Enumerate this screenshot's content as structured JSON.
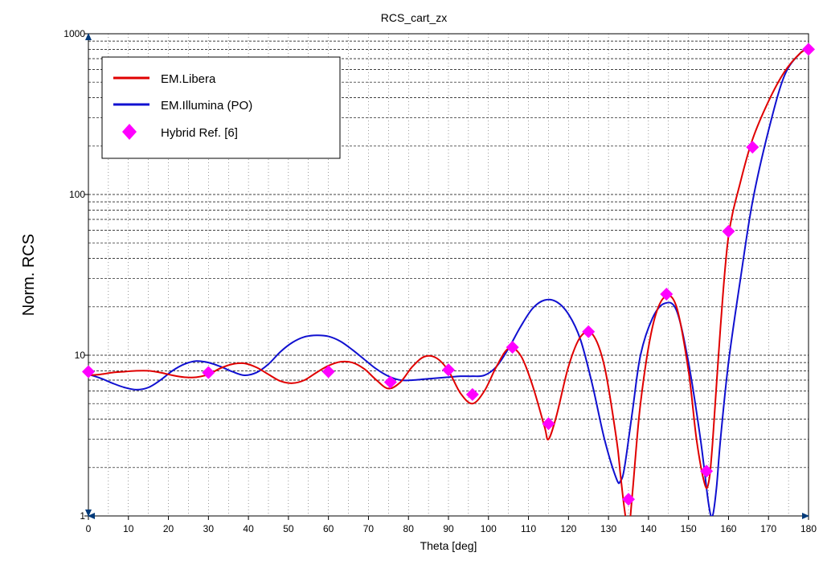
{
  "chart_data": {
    "type": "line",
    "title": "RCS_cart_zx",
    "xlabel": "Theta [deg]",
    "ylabel": "Norm. RCS",
    "xlim": [
      0,
      180
    ],
    "ylim": [
      1,
      1000
    ],
    "yscale": "log",
    "grid": true,
    "legend_position": "top-left",
    "x_ticks": [
      "0",
      "10",
      "20",
      "30",
      "40",
      "50",
      "60",
      "70",
      "80",
      "90",
      "100",
      "110",
      "120",
      "130",
      "140",
      "150",
      "160",
      "170",
      "180"
    ],
    "y_ticks": [
      "1",
      "10",
      "100",
      "1000"
    ],
    "series": [
      {
        "name": "EM.Libera",
        "style": "line",
        "color": "#e00000",
        "x": [
          0,
          3,
          6,
          9,
          12,
          15,
          18,
          21,
          24,
          27,
          30,
          33,
          36,
          39,
          42,
          45,
          48,
          51,
          54,
          57,
          60,
          63,
          66,
          69,
          72,
          75,
          78,
          81,
          84,
          87,
          90,
          93,
          96,
          99,
          102,
          105,
          108,
          111,
          114,
          115,
          117,
          120,
          123,
          126,
          129,
          132,
          133,
          134,
          135,
          136,
          138,
          141,
          144,
          147,
          150,
          152,
          154,
          155,
          156,
          158,
          160,
          163,
          166,
          170,
          174,
          178,
          180
        ],
        "y": [
          7.5,
          7.6,
          7.8,
          7.9,
          8.0,
          8.0,
          7.8,
          7.5,
          7.3,
          7.3,
          7.6,
          8.3,
          8.8,
          8.9,
          8.4,
          7.6,
          6.9,
          6.7,
          7.0,
          7.8,
          8.6,
          9.1,
          9.0,
          8.2,
          7.0,
          6.2,
          6.8,
          8.5,
          9.8,
          9.6,
          8.0,
          5.8,
          5.0,
          6.0,
          8.5,
          11.0,
          10.0,
          6.5,
          3.6,
          3.0,
          4.2,
          8.5,
          13.0,
          13.5,
          8.5,
          3.0,
          1.8,
          1.1,
          0.8,
          1.4,
          5.0,
          15.0,
          23.0,
          20.0,
          8.0,
          3.0,
          1.6,
          1.6,
          2.8,
          15.0,
          55.0,
          120.0,
          220.0,
          380.0,
          580.0,
          760.0,
          800.0
        ]
      },
      {
        "name": "EM.Illumina (PO)",
        "style": "line",
        "color": "#1010d0",
        "x": [
          0,
          3,
          6,
          9,
          12,
          15,
          18,
          21,
          24,
          27,
          30,
          33,
          36,
          39,
          42,
          45,
          48,
          51,
          54,
          57,
          60,
          63,
          66,
          69,
          72,
          75,
          78,
          81,
          84,
          87,
          90,
          93,
          96,
          99,
          102,
          105,
          108,
          111,
          114,
          117,
          120,
          123,
          126,
          129,
          132,
          133,
          134,
          136,
          138,
          141,
          144,
          147,
          150,
          153,
          155,
          156,
          157,
          158,
          160,
          163,
          166,
          170,
          174,
          178,
          180
        ],
        "y": [
          7.6,
          7.2,
          6.7,
          6.3,
          6.1,
          6.3,
          7.0,
          8.0,
          8.8,
          9.2,
          9.0,
          8.5,
          7.9,
          7.5,
          7.8,
          8.8,
          10.5,
          12.0,
          13.0,
          13.3,
          13.1,
          12.2,
          10.8,
          9.4,
          8.2,
          7.4,
          7.0,
          7.0,
          7.1,
          7.2,
          7.3,
          7.4,
          7.4,
          7.5,
          8.5,
          11.0,
          15.0,
          19.5,
          22.0,
          21.5,
          18.0,
          12.5,
          6.5,
          3.0,
          1.7,
          1.65,
          2.0,
          4.5,
          10.0,
          17.0,
          21.0,
          19.0,
          9.0,
          3.0,
          1.2,
          1.0,
          1.5,
          3.0,
          9.0,
          30.0,
          90.0,
          250.0,
          550.0,
          760.0,
          800.0
        ]
      },
      {
        "name": "Hybrid Ref. [6]",
        "style": "markers",
        "marker": "diamond",
        "color": "#ff00ff",
        "x": [
          0,
          30,
          60,
          75.5,
          90,
          96,
          106,
          115,
          125,
          135,
          144.5,
          154.5,
          160,
          166,
          180
        ],
        "y": [
          7.9,
          7.8,
          7.9,
          6.8,
          8.1,
          5.7,
          11.2,
          3.75,
          14.0,
          1.27,
          24.0,
          1.9,
          59.0,
          197.0,
          800.0
        ]
      }
    ]
  }
}
